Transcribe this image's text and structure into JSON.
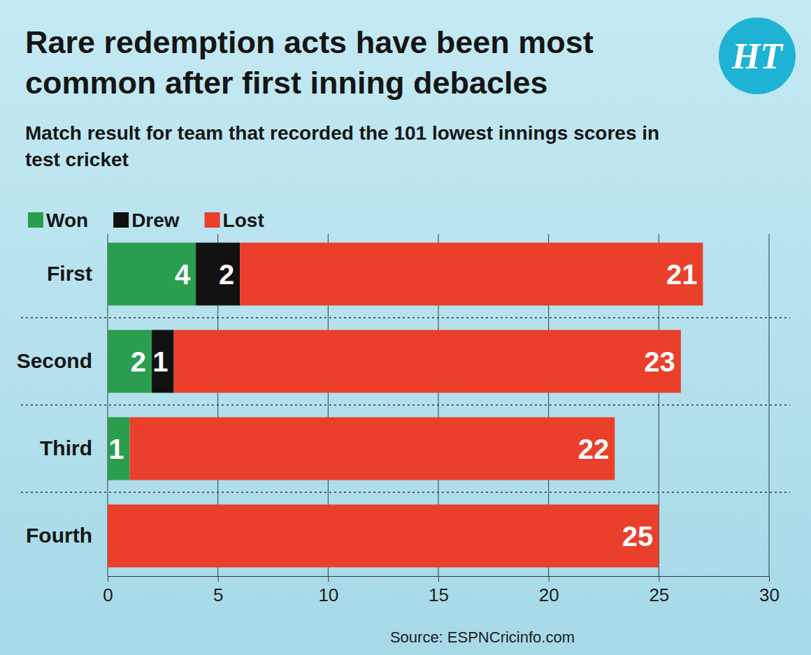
{
  "chart_data": {
    "type": "bar",
    "orientation": "horizontal",
    "stacked": true,
    "data_labels": true,
    "grid": true,
    "legend": "top-left",
    "title": "Rare redemption acts have been most common after first inning debacles",
    "subtitle": "Match result for team that recorded the 101 lowest innings scores in test cricket",
    "source": "Source: ESPNCricinfo.com",
    "logo": "HT",
    "categories": [
      "First",
      "Second",
      "Third",
      "Fourth"
    ],
    "series": [
      {
        "name": "Won",
        "color": "#2a9d4e",
        "values": [
          4,
          2,
          1,
          0
        ]
      },
      {
        "name": "Drew",
        "color": "#111111",
        "values": [
          2,
          1,
          0,
          0
        ]
      },
      {
        "name": "Lost",
        "color": "#ea3f2b",
        "values": [
          21,
          23,
          22,
          25
        ]
      }
    ],
    "xlim": [
      0,
      30
    ],
    "xticks": [
      0,
      5,
      10,
      15,
      20,
      25,
      30
    ]
  }
}
